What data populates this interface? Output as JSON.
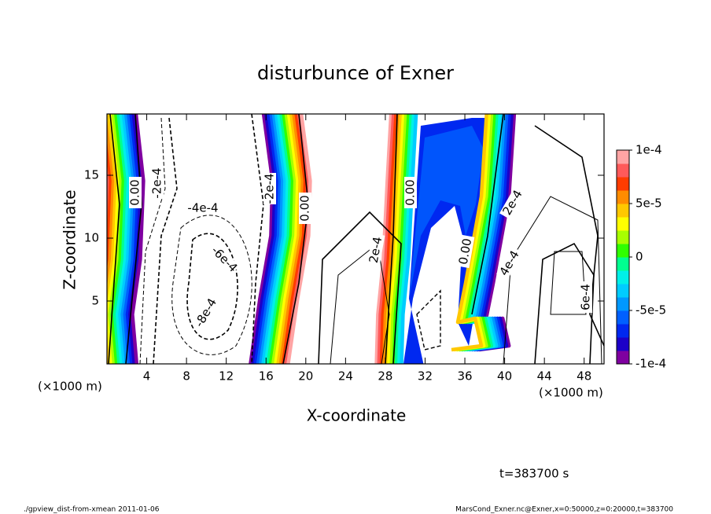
{
  "chart_data": {
    "type": "contour",
    "title": "disturbunce of Exner",
    "x_label": "X-coordinate",
    "y_label": "Z-coordinate",
    "x_unit": "(×1000 m)",
    "y_unit": "(×1000 m)",
    "xlim": [
      0,
      50
    ],
    "ylim": [
      0,
      20
    ],
    "xticks": [
      4,
      8,
      12,
      16,
      20,
      24,
      28,
      32,
      36,
      40,
      44,
      48
    ],
    "yticks": [
      5,
      10,
      15
    ],
    "contour_labels": [
      "0.00",
      "-2e-4",
      "-4e-4",
      "-6e-4",
      "-8e-4",
      "-2e-4",
      "0.00",
      "2e-4",
      "0.00",
      "0.00",
      "2e-4",
      "4e-4",
      "6e-4"
    ],
    "colorbar": {
      "lim": [
        -0.0001,
        0.0001
      ],
      "ticks": [
        {
          "value": 0.0001,
          "label": "1e-4"
        },
        {
          "value": 5e-05,
          "label": "5e-5"
        },
        0,
        {
          "value": -5e-05,
          "label": "-5e-5"
        },
        {
          "value": -0.0001,
          "label": "-1e-4"
        }
      ],
      "colors": [
        "#7f00a0",
        "#1c00c8",
        "#0028f0",
        "#0060ff",
        "#0098ff",
        "#00ccff",
        "#00f0e8",
        "#00ff90",
        "#30ff00",
        "#a8ff00",
        "#ffff00",
        "#ffc800",
        "#ff8c00",
        "#ff3c00",
        "#ff5a5a",
        "#ffa4a4"
      ]
    },
    "time_label": "t=383700 s",
    "footer_left": "./gpview_dist-from-xmean  2011-01-06",
    "footer_right": "MarsCond_Exner.nc@Exner,x=0:50000,z=0:20000,t=383700"
  }
}
